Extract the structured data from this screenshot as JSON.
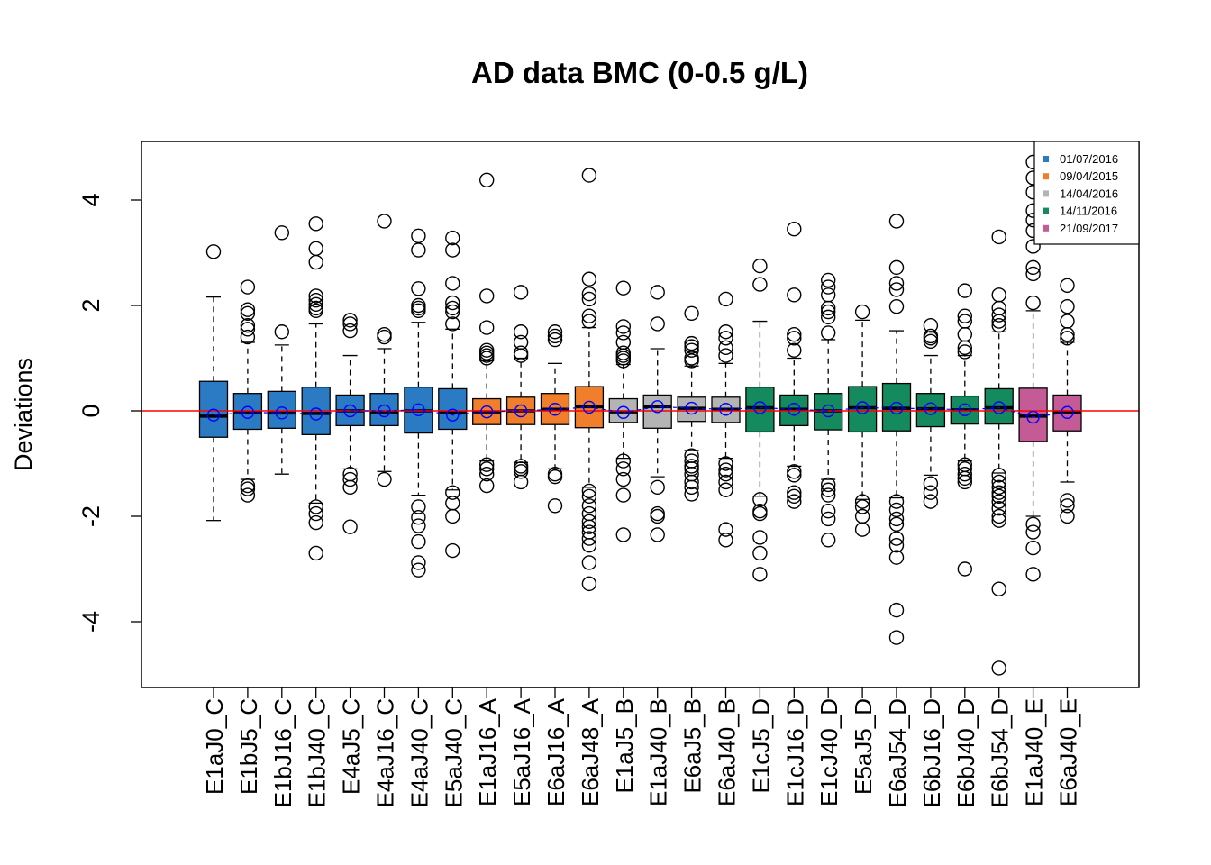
{
  "chart_data": {
    "type": "boxplot",
    "title": "AD data BMC (0-0.5 g/L)",
    "ylabel": "Deviations",
    "xlabel": "",
    "ylim": [
      -5.2,
      5.1
    ],
    "yticks": [
      -4,
      -2,
      0,
      2,
      4
    ],
    "reference_line": {
      "y": 0,
      "color": "#ff0000"
    },
    "mean_marker_color": "#0000ff",
    "legend": {
      "placement": "top-right",
      "entries": [
        {
          "label": "01/07/2016",
          "color": "#2a7bc4"
        },
        {
          "label": "09/04/2015",
          "color": "#f07e2a"
        },
        {
          "label": "14/04/2016",
          "color": "#b4b4b4"
        },
        {
          "label": "14/11/2016",
          "color": "#158a5e"
        },
        {
          "label": "21/09/2017",
          "color": "#c45a96"
        }
      ]
    },
    "boxes": [
      {
        "label": "E1aJ0_C",
        "group": 0,
        "q1": -0.5,
        "median": -0.1,
        "q3": 0.56,
        "wlo": -2.08,
        "whi": 2.16,
        "mean": -0.08,
        "outliers": [
          3.02
        ]
      },
      {
        "label": "E1bJ5_C",
        "group": 0,
        "q1": -0.35,
        "median": -0.03,
        "q3": 0.33,
        "wlo": -1.3,
        "whi": 1.3,
        "mean": -0.03,
        "outliers": [
          2.35,
          1.92,
          1.85,
          1.62,
          1.55,
          1.4,
          -1.42,
          -1.48,
          -1.6
        ]
      },
      {
        "label": "E1bJ16_C",
        "group": 0,
        "q1": -0.33,
        "median": -0.04,
        "q3": 0.37,
        "wlo": -1.2,
        "whi": 1.25,
        "mean": -0.04,
        "outliers": [
          3.38,
          1.5
        ]
      },
      {
        "label": "E1bJ40_C",
        "group": 0,
        "q1": -0.45,
        "median": -0.05,
        "q3": 0.45,
        "wlo": -1.75,
        "whi": 1.65,
        "mean": -0.06,
        "outliers": [
          3.55,
          3.08,
          2.82,
          2.18,
          2.1,
          2.02,
          1.95,
          1.9,
          -1.82,
          -1.95,
          -2.12,
          -2.7
        ]
      },
      {
        "label": "E4aJ5_C",
        "group": 0,
        "q1": -0.28,
        "median": 0.0,
        "q3": 0.3,
        "wlo": -1.1,
        "whi": 1.05,
        "mean": 0.0,
        "outliers": [
          1.72,
          1.65,
          1.52,
          -1.2,
          -1.3,
          -1.45,
          -2.2
        ]
      },
      {
        "label": "E4aJ16_C",
        "group": 0,
        "q1": -0.28,
        "median": -0.02,
        "q3": 0.33,
        "wlo": -1.15,
        "whi": 1.18,
        "mean": 0.0,
        "outliers": [
          3.6,
          1.45,
          1.4,
          -1.3
        ]
      },
      {
        "label": "E4aJ40_C",
        "group": 0,
        "q1": -0.42,
        "median": 0.0,
        "q3": 0.45,
        "wlo": -1.6,
        "whi": 1.68,
        "mean": 0.02,
        "outliers": [
          3.32,
          3.05,
          2.32,
          2.0,
          1.95,
          1.9,
          -1.82,
          -2.02,
          -2.18,
          -2.48,
          -2.88,
          -3.02
        ]
      },
      {
        "label": "E5aJ40_C",
        "group": 0,
        "q1": -0.35,
        "median": -0.03,
        "q3": 0.42,
        "wlo": -1.5,
        "whi": 1.55,
        "mean": -0.08,
        "outliers": [
          3.28,
          3.05,
          2.42,
          2.05,
          1.95,
          1.88,
          1.65,
          -1.55,
          -1.75,
          -2.0,
          -2.65
        ]
      },
      {
        "label": "E1aJ16_A",
        "group": 1,
        "q1": -0.26,
        "median": -0.02,
        "q3": 0.23,
        "wlo": -0.95,
        "whi": 0.95,
        "mean": -0.02,
        "outliers": [
          4.38,
          2.18,
          1.58,
          1.15,
          1.1,
          1.05,
          1.0,
          -1.02,
          -1.1,
          -1.2,
          -1.42
        ]
      },
      {
        "label": "E5aJ16_A",
        "group": 1,
        "q1": -0.26,
        "median": 0.0,
        "q3": 0.26,
        "wlo": -0.98,
        "whi": 1.0,
        "mean": 0.0,
        "outliers": [
          2.25,
          1.5,
          1.3,
          1.1,
          1.05,
          -1.05,
          -1.1,
          -1.15,
          -1.35
        ]
      },
      {
        "label": "E6aJ16_A",
        "group": 1,
        "q1": -0.26,
        "median": 0.03,
        "q3": 0.33,
        "wlo": -1.1,
        "whi": 0.9,
        "mean": 0.03,
        "outliers": [
          1.5,
          1.42,
          1.35,
          -1.2,
          -1.25,
          -1.8
        ]
      },
      {
        "label": "E6aJ48_A",
        "group": 1,
        "q1": -0.32,
        "median": 0.08,
        "q3": 0.46,
        "wlo": -1.45,
        "whi": 1.58,
        "mean": 0.07,
        "outliers": [
          4.47,
          2.5,
          2.22,
          2.12,
          1.8,
          1.7,
          -1.52,
          -1.62,
          -1.8,
          -1.95,
          -2.1,
          -2.2,
          -2.3,
          -2.42,
          -2.55,
          -2.88,
          -3.28
        ]
      },
      {
        "label": "E1aJ5_B",
        "group": 2,
        "q1": -0.22,
        "median": -0.02,
        "q3": 0.23,
        "wlo": -0.9,
        "whi": 0.88,
        "mean": -0.03,
        "outliers": [
          2.33,
          1.6,
          1.48,
          1.3,
          1.1,
          1.05,
          1.0,
          0.95,
          -0.95,
          -1.1,
          -1.3,
          -1.6,
          -2.35
        ]
      },
      {
        "label": "E1aJ40_B",
        "group": 2,
        "q1": -0.33,
        "median": 0.08,
        "q3": 0.3,
        "wlo": -1.25,
        "whi": 1.18,
        "mean": 0.08,
        "outliers": [
          2.25,
          1.65,
          -1.45,
          -1.95,
          -2.0,
          -2.35
        ]
      },
      {
        "label": "E6aJ5_B",
        "group": 2,
        "q1": -0.2,
        "median": 0.05,
        "q3": 0.26,
        "wlo": -0.75,
        "whi": 0.85,
        "mean": 0.05,
        "outliers": [
          1.85,
          1.28,
          1.22,
          1.15,
          1.0,
          0.95,
          -0.85,
          -0.95,
          -1.05,
          -1.1,
          -1.2,
          -1.35,
          -1.45,
          -1.58
        ]
      },
      {
        "label": "E6aJ40_B",
        "group": 2,
        "q1": -0.22,
        "median": 0.03,
        "q3": 0.26,
        "wlo": -0.9,
        "whi": 0.9,
        "mean": 0.03,
        "outliers": [
          2.12,
          1.5,
          1.38,
          1.2,
          1.05,
          -1.0,
          -1.12,
          -1.2,
          -1.35,
          -1.5,
          -2.25,
          -2.45
        ]
      },
      {
        "label": "E1cJ5_D",
        "group": 3,
        "q1": -0.4,
        "median": 0.06,
        "q3": 0.45,
        "wlo": -1.62,
        "whi": 1.7,
        "mean": 0.06,
        "outliers": [
          2.75,
          2.4,
          -1.68,
          -1.9,
          -1.95,
          -2.4,
          -2.7,
          -3.1
        ]
      },
      {
        "label": "E1cJ16_D",
        "group": 3,
        "q1": -0.28,
        "median": 0.03,
        "q3": 0.3,
        "wlo": -1.05,
        "whi": 1.0,
        "mean": 0.03,
        "outliers": [
          3.45,
          2.2,
          1.45,
          1.38,
          1.15,
          -1.15,
          -1.22,
          -1.55,
          -1.62,
          -1.72
        ]
      },
      {
        "label": "E1cJ40_D",
        "group": 3,
        "q1": -0.36,
        "median": 0.0,
        "q3": 0.33,
        "wlo": -1.3,
        "whi": 1.35,
        "mean": 0.0,
        "outliers": [
          2.48,
          2.35,
          2.2,
          1.95,
          1.88,
          1.78,
          1.48,
          -1.4,
          -1.5,
          -1.6,
          -1.9,
          -2.05,
          -2.45
        ]
      },
      {
        "label": "E5aJ5_D",
        "group": 3,
        "q1": -0.4,
        "median": 0.06,
        "q3": 0.46,
        "wlo": -1.68,
        "whi": 1.72,
        "mean": 0.06,
        "outliers": [
          1.88,
          -1.72,
          -1.82,
          -2.0,
          -2.25
        ]
      },
      {
        "label": "E6aJ54_D",
        "group": 3,
        "q1": -0.38,
        "median": 0.05,
        "q3": 0.52,
        "wlo": -1.65,
        "whi": 1.52,
        "mean": 0.05,
        "outliers": [
          3.6,
          2.72,
          2.42,
          2.3,
          1.98,
          -1.72,
          -1.88,
          -2.05,
          -2.15,
          -2.42,
          -2.55,
          -2.78,
          -3.78,
          -4.3
        ]
      },
      {
        "label": "E6bJ16_D",
        "group": 3,
        "q1": -0.3,
        "median": 0.04,
        "q3": 0.33,
        "wlo": -1.22,
        "whi": 1.05,
        "mean": 0.04,
        "outliers": [
          1.62,
          1.42,
          1.38,
          1.32,
          -1.38,
          -1.55,
          -1.72
        ]
      },
      {
        "label": "E6bJ40_D",
        "group": 3,
        "q1": -0.25,
        "median": 0.02,
        "q3": 0.28,
        "wlo": -0.95,
        "whi": 1.05,
        "mean": 0.02,
        "outliers": [
          2.28,
          1.8,
          1.7,
          1.45,
          1.2,
          1.12,
          -1.02,
          -1.1,
          -1.2,
          -1.28,
          -1.35,
          -3.0
        ]
      },
      {
        "label": "E6bJ54_D",
        "group": 3,
        "q1": -0.25,
        "median": 0.06,
        "q3": 0.42,
        "wlo": -1.18,
        "whi": 1.5,
        "mean": 0.06,
        "outliers": [
          3.3,
          2.2,
          1.95,
          1.82,
          1.7,
          1.62,
          -1.22,
          -1.35,
          -1.45,
          -1.55,
          -1.62,
          -1.72,
          -1.85,
          -2.0,
          -2.08,
          -3.38,
          -4.88
        ]
      },
      {
        "label": "E1aJ40_E",
        "group": 4,
        "q1": -0.58,
        "median": -0.1,
        "q3": 0.43,
        "wlo": -2.0,
        "whi": 1.9,
        "mean": -0.12,
        "outliers": [
          4.72,
          4.42,
          4.15,
          3.8,
          3.62,
          3.42,
          3.12,
          2.72,
          2.6,
          2.05,
          -2.15,
          -2.3,
          -2.6,
          -3.1
        ]
      },
      {
        "label": "E6aJ40_E",
        "group": 4,
        "q1": -0.38,
        "median": -0.02,
        "q3": 0.3,
        "wlo": -1.35,
        "whi": 1.3,
        "mean": -0.03,
        "outliers": [
          3.82,
          2.38,
          1.98,
          1.7,
          1.45,
          1.38,
          -1.7,
          -1.8,
          -2.0
        ]
      }
    ]
  }
}
